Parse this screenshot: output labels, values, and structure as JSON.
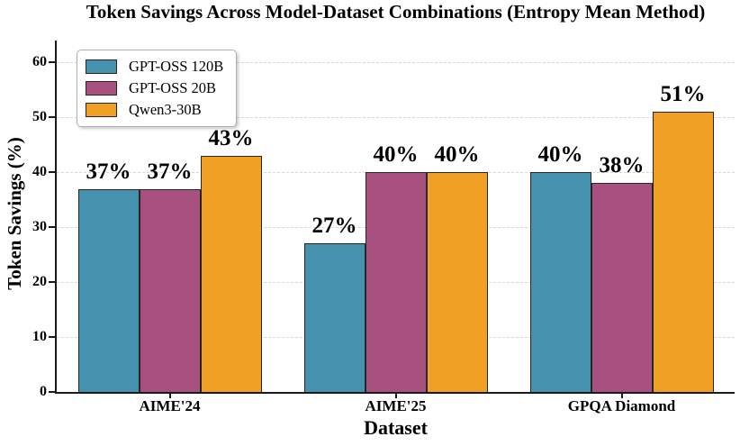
{
  "chart_data": {
    "type": "bar",
    "title": "Token Savings Across Model-Dataset Combinations (Entropy Mean Method)",
    "xlabel": "Dataset",
    "ylabel": "Token Savings (%)",
    "categories": [
      "AIME'24",
      "AIME'25",
      "GPQA Diamond"
    ],
    "series": [
      {
        "name": "GPT-OSS 120B",
        "color": "#4592AF",
        "values": [
          37,
          27,
          40
        ],
        "value_labels": [
          "37%",
          "27%",
          "40%"
        ]
      },
      {
        "name": "GPT-OSS 20B",
        "color": "#A85080",
        "values": [
          37,
          40,
          38
        ],
        "value_labels": [
          "37%",
          "40%",
          "38%"
        ]
      },
      {
        "name": "Qwen3-30B",
        "color": "#F0A125",
        "values": [
          43,
          40,
          51
        ],
        "value_labels": [
          "43%",
          "40%",
          "51%"
        ]
      }
    ],
    "yticks": [
      0,
      10,
      20,
      30,
      40,
      50,
      60
    ],
    "ylim": [
      0,
      64
    ],
    "grid": "horizontal-dashed",
    "legend_position": "upper-left",
    "style": {
      "bar_edge_color": "#262626",
      "grid_color": "#d8d8d8",
      "spine_color": "#1a1a1a",
      "background": "#ffffff"
    }
  }
}
